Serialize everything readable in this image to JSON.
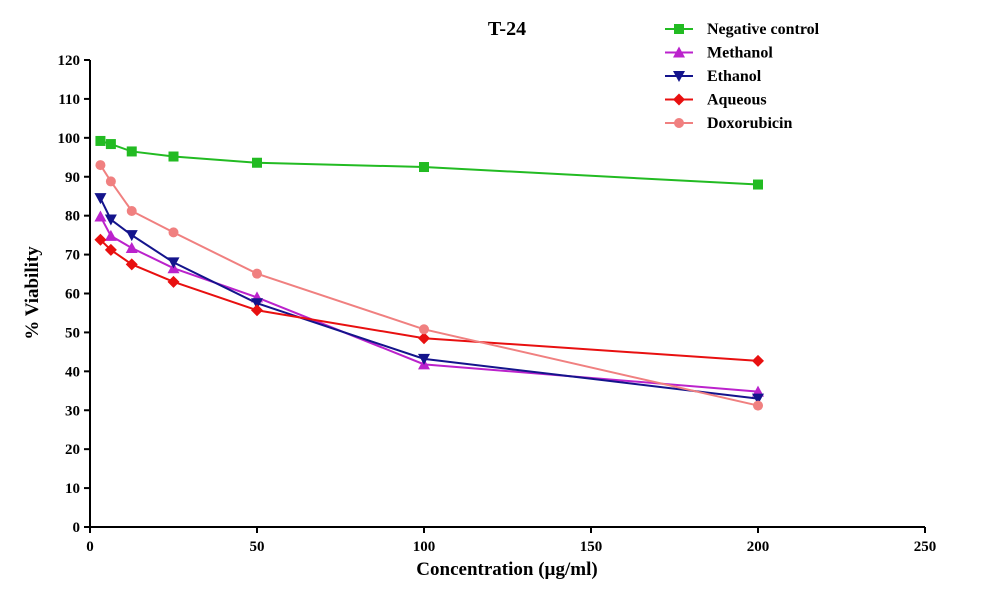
{
  "chart_data": {
    "type": "line",
    "title": "T-24",
    "xlabel": "Concentration (µg/ml)",
    "ylabel": "% Viability",
    "xlim": [
      0,
      250
    ],
    "ylim": [
      0,
      120
    ],
    "xticks": [
      0,
      50,
      100,
      150,
      200,
      250
    ],
    "yticks": [
      0,
      10,
      20,
      30,
      40,
      50,
      60,
      70,
      80,
      90,
      100,
      110,
      120
    ],
    "legend_position": "top-right",
    "x": [
      3.125,
      6.25,
      12.5,
      25,
      50,
      100,
      200
    ],
    "series": [
      {
        "name": "Negative control",
        "color": "#22bb22",
        "marker": "square",
        "values": [
          99.2,
          98.4,
          96.5,
          95.2,
          93.6,
          92.5,
          88.0
        ]
      },
      {
        "name": "Methanol",
        "color": "#bb22cc",
        "marker": "triangle-up",
        "values": [
          79.8,
          74.8,
          71.7,
          66.5,
          59.0,
          41.8,
          34.8
        ]
      },
      {
        "name": "Ethanol",
        "color": "#14148c",
        "marker": "triangle-down",
        "values": [
          84.5,
          79.0,
          75.0,
          68.0,
          57.5,
          43.2,
          33.0
        ]
      },
      {
        "name": "Aqueous",
        "color": "#e81010",
        "marker": "diamond",
        "values": [
          73.8,
          71.2,
          67.5,
          63.0,
          55.7,
          48.5,
          42.7
        ]
      },
      {
        "name": "Doxorubicin",
        "color": "#f08080",
        "marker": "circle",
        "values": [
          93.0,
          88.8,
          81.2,
          75.7,
          65.1,
          50.8,
          31.2
        ]
      }
    ]
  }
}
